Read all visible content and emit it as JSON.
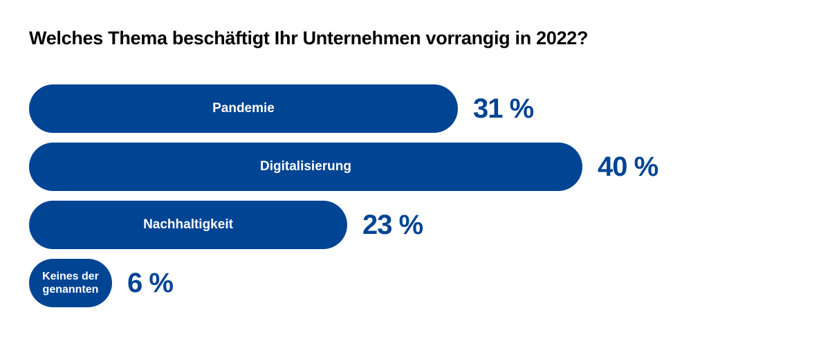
{
  "chart_data": {
    "type": "bar",
    "orientation": "horizontal",
    "title": "Welches Thema beschäftigt Ihr Unternehmen vorrangig in 2022?",
    "categories": [
      "Pandemie",
      "Digitalisierung",
      "Nachhaltigkeit",
      "Keines der genannten"
    ],
    "values": [
      31,
      40,
      23,
      6
    ],
    "value_labels": [
      "31 %",
      "40 %",
      "23 %",
      "6 %"
    ],
    "unit": "%",
    "xlim": [
      0,
      50
    ],
    "grid": false,
    "legend": "none",
    "colors": {
      "bar": "#004494",
      "value_text": "#004494",
      "label_text": "#ffffff",
      "title_text": "#000000"
    }
  }
}
